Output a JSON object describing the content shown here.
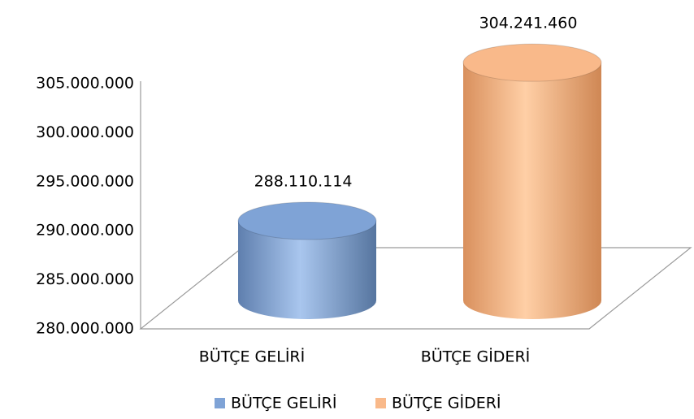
{
  "chart_data": {
    "type": "cylinder",
    "categories": [
      "BÜTÇE GELİRİ",
      "BÜTÇE GİDERİ"
    ],
    "values": [
      288110114,
      304241460
    ],
    "value_labels": [
      "288.110.114",
      "304.241.460"
    ],
    "colors": [
      "#7fa3d6",
      "#f9b98a"
    ],
    "ylim": [
      280000000,
      305000000
    ],
    "yticks": [
      {
        "value": 280000000,
        "label": "280.000.000"
      },
      {
        "value": 285000000,
        "label": "285.000.000"
      },
      {
        "value": 290000000,
        "label": "290.000.000"
      },
      {
        "value": 295000000,
        "label": "295.000.000"
      },
      {
        "value": 300000000,
        "label": "300.000.000"
      },
      {
        "value": 305000000,
        "label": "305.000.000"
      }
    ],
    "legend": "bottom"
  }
}
